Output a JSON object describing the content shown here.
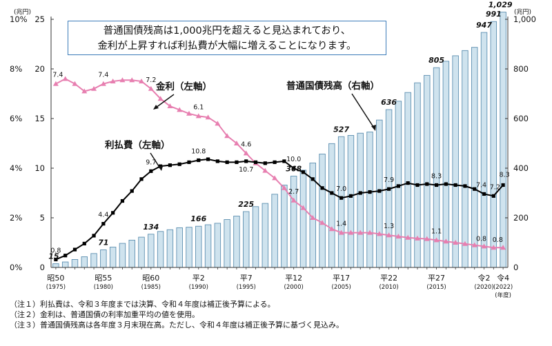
{
  "callout": {
    "line1": "普通国債残高は1,000兆円を超えると見込まれており、",
    "line2": "金利が上昇すれば利払費が大幅に増えることになります。"
  },
  "notes": [
    "（注１）利払費は、令和３年度までは決算、令和４年度は補正後予算による。",
    "（注２）金利は、普通国債の利率加重平均の値を使用。",
    "（注３）普通国債残高は各年度３月末現在高。ただし、令和４年度は補正後予算に基づく見込み。"
  ],
  "chart_data": {
    "type": "bar+line",
    "years": [
      1975,
      1976,
      1977,
      1978,
      1979,
      1980,
      1981,
      1982,
      1983,
      1984,
      1985,
      1986,
      1987,
      1988,
      1989,
      1990,
      1991,
      1992,
      1993,
      1994,
      1995,
      1996,
      1997,
      1998,
      1999,
      2000,
      2001,
      2002,
      2003,
      2004,
      2005,
      2006,
      2007,
      2008,
      2009,
      2010,
      2011,
      2012,
      2013,
      2014,
      2015,
      2016,
      2017,
      2018,
      2019,
      2020,
      2021,
      2022
    ],
    "x_tick_labels": [
      {
        "year": 1975,
        "era": "昭50",
        "west": "(1975)"
      },
      {
        "year": 1980,
        "era": "昭55",
        "west": "(1980)"
      },
      {
        "year": 1985,
        "era": "昭60",
        "west": "(1985)"
      },
      {
        "year": 1990,
        "era": "平2",
        "west": "(1990)"
      },
      {
        "year": 1995,
        "era": "平7",
        "west": "(1995)"
      },
      {
        "year": 2000,
        "era": "平12",
        "west": "(2000)"
      },
      {
        "year": 2005,
        "era": "平17",
        "west": "(2005)"
      },
      {
        "year": 2010,
        "era": "平22",
        "west": "(2010)"
      },
      {
        "year": 2015,
        "era": "平27",
        "west": "(2015)"
      },
      {
        "year": 2020,
        "era": "令2",
        "west": "(2020)"
      },
      {
        "year": 2022,
        "era": "令4",
        "west": "(2022)"
      }
    ],
    "x_unit_label": "(年度)",
    "left_axis": {
      "unit_label": "(兆円)",
      "ylim": [
        0,
        25
      ],
      "ticks": [
        0,
        5,
        10,
        15,
        20,
        25
      ],
      "pct_ticks": [
        "0%",
        "2%",
        "4%",
        "6%",
        "8%",
        "10%"
      ]
    },
    "right_axis": {
      "unit_label": "(兆円)",
      "ylim": [
        0,
        1000
      ],
      "ticks": [
        "0",
        "200",
        "400",
        "600",
        "800",
        "1,000"
      ]
    },
    "series": [
      {
        "name": "普通国債残高（右軸）",
        "kind": "bar",
        "axis": "right",
        "color": "#cfe3ee",
        "stroke": "#5d8fb0",
        "values": [
          15,
          22,
          32,
          43,
          56,
          71,
          82,
          97,
          110,
          122,
          134,
          145,
          152,
          160,
          162,
          166,
          172,
          178,
          193,
          207,
          225,
          245,
          258,
          295,
          332,
          368,
          392,
          421,
          457,
          499,
          527,
          532,
          541,
          546,
          594,
          636,
          670,
          705,
          744,
          774,
          805,
          831,
          853,
          874,
          887,
          947,
          991,
          1029
        ],
        "labels": [
          {
            "year": 1975,
            "text": "15"
          },
          {
            "year": 1980,
            "text": "71"
          },
          {
            "year": 1985,
            "text": "134"
          },
          {
            "year": 1990,
            "text": "166"
          },
          {
            "year": 1995,
            "text": "225"
          },
          {
            "year": 2000,
            "text": "368"
          },
          {
            "year": 2005,
            "text": "527"
          },
          {
            "year": 2010,
            "text": "636"
          },
          {
            "year": 2015,
            "text": "805"
          },
          {
            "year": 2020,
            "text": "947"
          },
          {
            "year": 2021,
            "text": "991"
          },
          {
            "year": 2022,
            "text": "1,029"
          }
        ]
      },
      {
        "name": "金利（左軸）",
        "kind": "line",
        "axis": "left_pct",
        "color": "#e77fb0",
        "values": [
          7.4,
          7.6,
          7.4,
          7.1,
          7.2,
          7.4,
          7.5,
          7.55,
          7.55,
          7.5,
          7.2,
          6.8,
          6.5,
          6.35,
          6.2,
          6.1,
          6.05,
          5.8,
          5.3,
          5.0,
          4.6,
          4.2,
          3.9,
          3.6,
          3.2,
          2.7,
          2.4,
          2.0,
          1.8,
          1.55,
          1.4,
          1.4,
          1.4,
          1.4,
          1.35,
          1.3,
          1.25,
          1.2,
          1.17,
          1.15,
          1.1,
          1.05,
          1.0,
          0.95,
          0.9,
          0.85,
          0.8,
          0.8
        ],
        "labels": [
          {
            "year": 1975,
            "text": "7.4"
          },
          {
            "year": 1980,
            "text": "7.4"
          },
          {
            "year": 1985,
            "text": "7.2"
          },
          {
            "year": 1990,
            "text": "6.1"
          },
          {
            "year": 1995,
            "text": "4.6"
          },
          {
            "year": 2000,
            "text": "2.7"
          },
          {
            "year": 2005,
            "text": "1.4"
          },
          {
            "year": 2010,
            "text": "1.3"
          },
          {
            "year": 2015,
            "text": "1.1"
          },
          {
            "year": 2020,
            "text": "0.8"
          },
          {
            "year": 2021,
            "text": "0.8"
          }
        ]
      },
      {
        "name": "利払費（左軸）",
        "kind": "line",
        "axis": "left",
        "color": "#000000",
        "values": [
          0.8,
          1.2,
          1.8,
          2.4,
          3.2,
          4.4,
          5.5,
          6.7,
          7.7,
          8.9,
          9.7,
          10.2,
          10.3,
          10.4,
          10.6,
          10.8,
          10.9,
          10.7,
          10.6,
          10.6,
          10.7,
          10.6,
          10.5,
          10.6,
          10.7,
          10.0,
          9.6,
          8.9,
          8.0,
          7.5,
          7.0,
          7.2,
          7.5,
          7.6,
          7.7,
          7.9,
          8.2,
          8.5,
          8.3,
          8.4,
          8.3,
          8.4,
          8.3,
          8.2,
          7.9,
          7.4,
          7.2,
          8.3
        ],
        "labels": [
          {
            "year": 1975,
            "text": "0.8"
          },
          {
            "year": 1980,
            "text": "4.4"
          },
          {
            "year": 1985,
            "text": "9.7"
          },
          {
            "year": 1990,
            "text": "10.8"
          },
          {
            "year": 1995,
            "text": "10.7"
          },
          {
            "year": 2000,
            "text": "10.0"
          },
          {
            "year": 2005,
            "text": "7.0"
          },
          {
            "year": 2010,
            "text": "7.9"
          },
          {
            "year": 2015,
            "text": "8.3"
          },
          {
            "year": 2020,
            "text": "7.4"
          },
          {
            "year": 2021,
            "text": "7.2"
          },
          {
            "year": 2022,
            "text": "8.3"
          }
        ]
      }
    ],
    "series_labels": {
      "kinri": "金利（左軸）",
      "ribarai": "利払費（左軸）",
      "zandaka": "普通国債残高（右軸）"
    }
  }
}
